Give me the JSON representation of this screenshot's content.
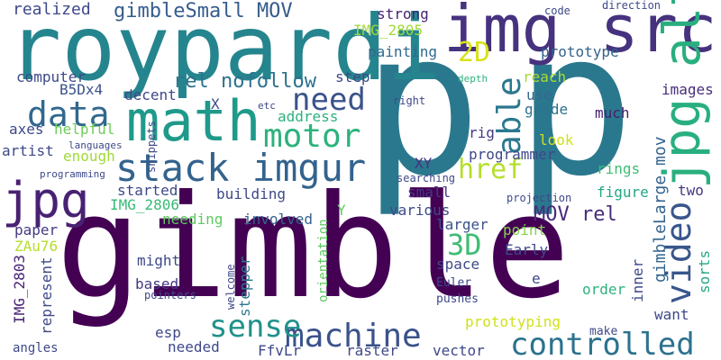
{
  "words": [
    {
      "text": "gimble",
      "color": "#440154"
    },
    {
      "text": "p",
      "color": "#2a788e"
    },
    {
      "text": "p",
      "color": "#2a788e"
    },
    {
      "text": "roypardi",
      "color": "#25858e"
    },
    {
      "text": "img src",
      "color": "#46327e"
    },
    {
      "text": "math",
      "color": "#1f9a8a"
    },
    {
      "text": "jpg",
      "color": "#482173"
    },
    {
      "text": "stack imgur",
      "color": "#33638d"
    },
    {
      "text": "jpg alt",
      "color": "#29af7f"
    },
    {
      "text": "video",
      "color": "#39568c"
    },
    {
      "text": "controlled",
      "color": "#2c728e"
    },
    {
      "text": "machine",
      "color": "#3b528b"
    },
    {
      "text": "sense",
      "color": "#21918c"
    },
    {
      "text": "motor",
      "color": "#2db27d"
    },
    {
      "text": "need",
      "color": "#3b528b"
    },
    {
      "text": "data",
      "color": "#31688e"
    },
    {
      "text": "able",
      "color": "#2a788e"
    },
    {
      "text": "href",
      "color": "#b5de2b"
    },
    {
      "text": "3D",
      "color": "#3fbc73"
    },
    {
      "text": "2D",
      "color": "#d8e219"
    },
    {
      "text": "rel nofollow",
      "color": "#2c728e"
    },
    {
      "text": "gimbleSmall MOV",
      "color": "#365c8d"
    },
    {
      "text": "realized",
      "color": "#3e4989"
    },
    {
      "text": "MOV rel",
      "color": "#472d7b"
    },
    {
      "text": "gimbleLarge mov",
      "color": "#33638d"
    },
    {
      "text": "IMG_2805",
      "color": "#a0da39"
    },
    {
      "text": "IMG_2806",
      "color": "#38b977"
    },
    {
      "text": "IMG_2803",
      "color": "#482475"
    },
    {
      "text": "strong",
      "color": "#482173"
    },
    {
      "text": "prototype",
      "color": "#33638d"
    },
    {
      "text": "painting",
      "color": "#31688e"
    },
    {
      "text": "reach",
      "color": "#a8db34"
    },
    {
      "text": "computer",
      "color": "#3e4989"
    },
    {
      "text": "B5Dx4",
      "color": "#3b528b"
    },
    {
      "text": "step",
      "color": "#3e4989"
    },
    {
      "text": "decent",
      "color": "#3e4989"
    },
    {
      "text": "use",
      "color": "#31688e"
    },
    {
      "text": "images",
      "color": "#472d7b"
    },
    {
      "text": "gcode",
      "color": "#2c728e"
    },
    {
      "text": "much",
      "color": "#481f70"
    },
    {
      "text": "axes",
      "color": "#3e4989"
    },
    {
      "text": "helpful",
      "color": "#6ccd5a"
    },
    {
      "text": "artist",
      "color": "#3e4989"
    },
    {
      "text": "address",
      "color": "#2db27d"
    },
    {
      "text": "rig",
      "color": "#443a83"
    },
    {
      "text": "look",
      "color": "#d0e11c"
    },
    {
      "text": "enough",
      "color": "#a0da39"
    },
    {
      "text": "XY",
      "color": "#46327e"
    },
    {
      "text": "programmer",
      "color": "#3e4989"
    },
    {
      "text": "rings",
      "color": "#3fbc73"
    },
    {
      "text": "started",
      "color": "#3e4989"
    },
    {
      "text": "small",
      "color": "#453882"
    },
    {
      "text": "building",
      "color": "#3e4989"
    },
    {
      "text": "figure",
      "color": "#22a785"
    },
    {
      "text": "two",
      "color": "#453882"
    },
    {
      "text": "needing",
      "color": "#5ec962"
    },
    {
      "text": "involved",
      "color": "#33638d"
    },
    {
      "text": "various",
      "color": "#3e4989"
    },
    {
      "text": "larger",
      "color": "#3b528b"
    },
    {
      "text": "point",
      "color": "#84d44b"
    },
    {
      "text": "Early",
      "color": "#3e4989"
    },
    {
      "text": "space",
      "color": "#3e4989"
    },
    {
      "text": "paper",
      "color": "#453882"
    },
    {
      "text": "ZAu76",
      "color": "#b5de2b"
    },
    {
      "text": "might",
      "color": "#3e4989"
    },
    {
      "text": "based",
      "color": "#453882"
    },
    {
      "text": "represent",
      "color": "#3e4989"
    },
    {
      "text": "stepper",
      "color": "#2a788e"
    },
    {
      "text": "order",
      "color": "#2db27d"
    },
    {
      "text": "want",
      "color": "#3e4989"
    },
    {
      "text": "inner",
      "color": "#3e4989"
    },
    {
      "text": "sorts",
      "color": "#22a785"
    },
    {
      "text": "e",
      "color": "#3e4989"
    },
    {
      "text": "prototyping",
      "color": "#d0e11c"
    },
    {
      "text": "raster",
      "color": "#3e4989"
    },
    {
      "text": "vector",
      "color": "#3e4989"
    },
    {
      "text": "needed",
      "color": "#3e4989"
    },
    {
      "text": "esp",
      "color": "#3e4989"
    },
    {
      "text": "FfvLr",
      "color": "#3e4989"
    },
    {
      "text": "angles",
      "color": "#3e4989"
    },
    {
      "text": "Euler",
      "color": "#3e4989"
    },
    {
      "text": "pushes",
      "color": "#3e4989"
    },
    {
      "text": "make",
      "color": "#3e4989"
    },
    {
      "text": "orientation",
      "color": "#5ec962"
    },
    {
      "text": "projection",
      "color": "#3e4989"
    },
    {
      "text": "searching",
      "color": "#3e4989"
    },
    {
      "text": "pointers",
      "color": "#3e4989"
    },
    {
      "text": "welcome",
      "color": "#3e4989"
    },
    {
      "text": "snippets",
      "color": "#3e4989"
    },
    {
      "text": "languages",
      "color": "#3e4989"
    },
    {
      "text": "programming",
      "color": "#3e4989"
    },
    {
      "text": "depth",
      "color": "#2db27d"
    },
    {
      "text": "right",
      "color": "#3e4989"
    },
    {
      "text": "code",
      "color": "#3e4989"
    },
    {
      "text": "direction",
      "color": "#3e4989"
    },
    {
      "text": "etc",
      "color": "#3e4989"
    },
    {
      "text": "X",
      "color": "#3e4989"
    },
    {
      "text": "Y",
      "color": "#5ec962"
    }
  ]
}
